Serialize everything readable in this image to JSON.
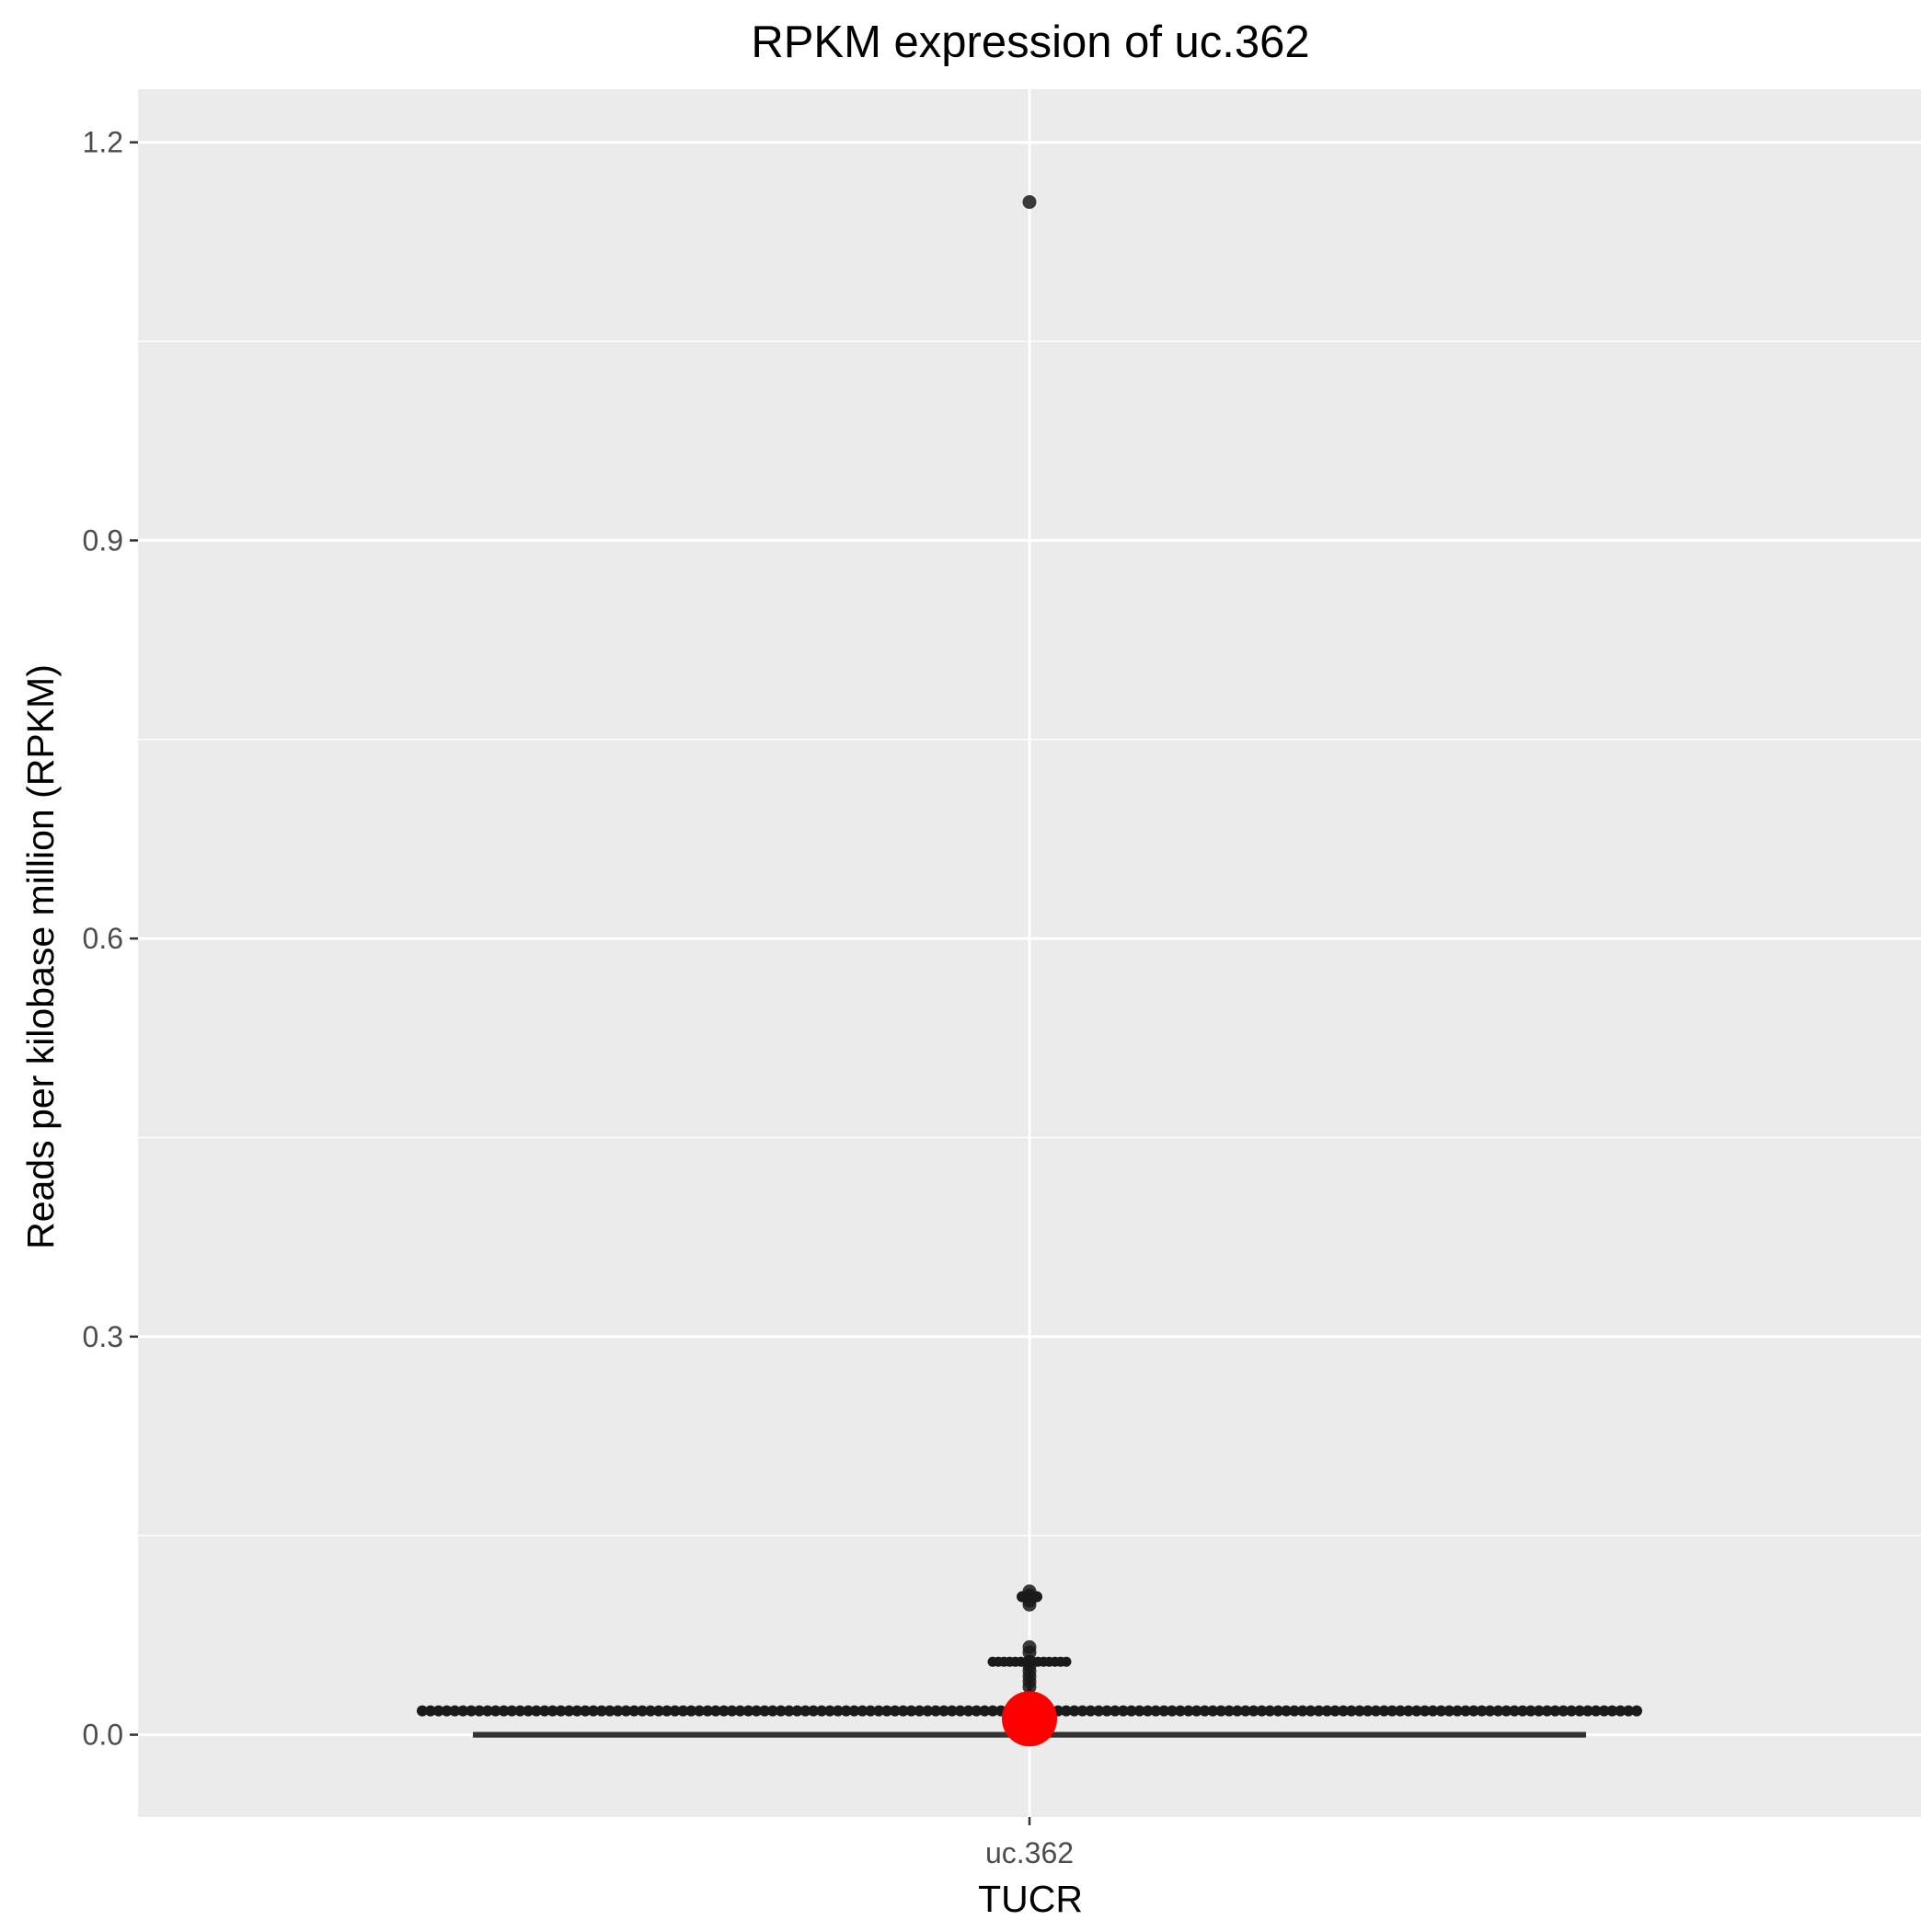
{
  "chart_data": {
    "type": "boxplot",
    "title": "RPKM expression of  uc.362",
    "xlabel": "TUCR",
    "ylabel": "Reads per kilobase million (RPKM)",
    "categories": [
      "uc.362"
    ],
    "ylim": [
      -0.062,
      1.24
    ],
    "yticks": [
      0.0,
      0.3,
      0.6,
      0.9,
      1.2
    ],
    "ytick_labels": [
      "0.0",
      "0.3",
      "0.6",
      "0.9",
      "1.2"
    ],
    "grid": true,
    "box": {
      "category": "uc.362",
      "min": 0.0,
      "q1": 0.0,
      "median": 0.0,
      "q3": 0.0,
      "max": 0.0
    },
    "outliers": [
      1.155,
      0.108,
      0.105,
      0.101,
      0.098,
      0.066,
      0.062,
      0.055,
      0.052,
      0.048,
      0.044,
      0.04,
      0.036
    ],
    "jitter_points": {
      "value": 0.018,
      "count": 150
    },
    "highlight": {
      "label": "mean",
      "value": 0.012,
      "color": "#ff0000"
    },
    "colors": {
      "panel": "#ebebeb",
      "grid": "#ffffff",
      "points": "#1a1a1a",
      "box": "#333333"
    }
  }
}
